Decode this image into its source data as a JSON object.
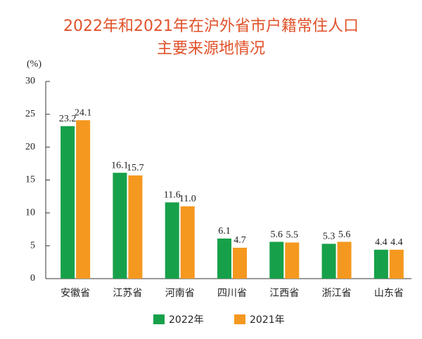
{
  "chart_data": {
    "type": "bar",
    "title": [
      "2022年和2021年在沪外省市户籍常住人口",
      "主要来源地情况"
    ],
    "y_label": "(%)",
    "categories": [
      "安徽省",
      "江苏省",
      "河南省",
      "四川省",
      "江西省",
      "浙江省",
      "山东省"
    ],
    "series": [
      {
        "name": "2022年",
        "color": "#17a04a",
        "values": [
          23.2,
          16.1,
          11.6,
          6.1,
          5.6,
          5.3,
          4.4
        ],
        "value_labels": [
          "23.2",
          "16.1",
          "11.6",
          "6.1",
          "5.6",
          "5.3",
          "4.4"
        ]
      },
      {
        "name": "2021年",
        "color": "#f5981f",
        "values": [
          24.1,
          15.7,
          11.0,
          4.7,
          5.5,
          5.6,
          4.4
        ],
        "value_labels": [
          "24.1",
          "15.7",
          "11.0",
          "4.7",
          "5.5",
          "5.6",
          "4.4"
        ]
      }
    ],
    "ylim": [
      0,
      30
    ],
    "yticks": [
      0,
      5,
      10,
      15,
      20,
      25,
      30
    ],
    "grid": false,
    "legend": "bottom"
  }
}
